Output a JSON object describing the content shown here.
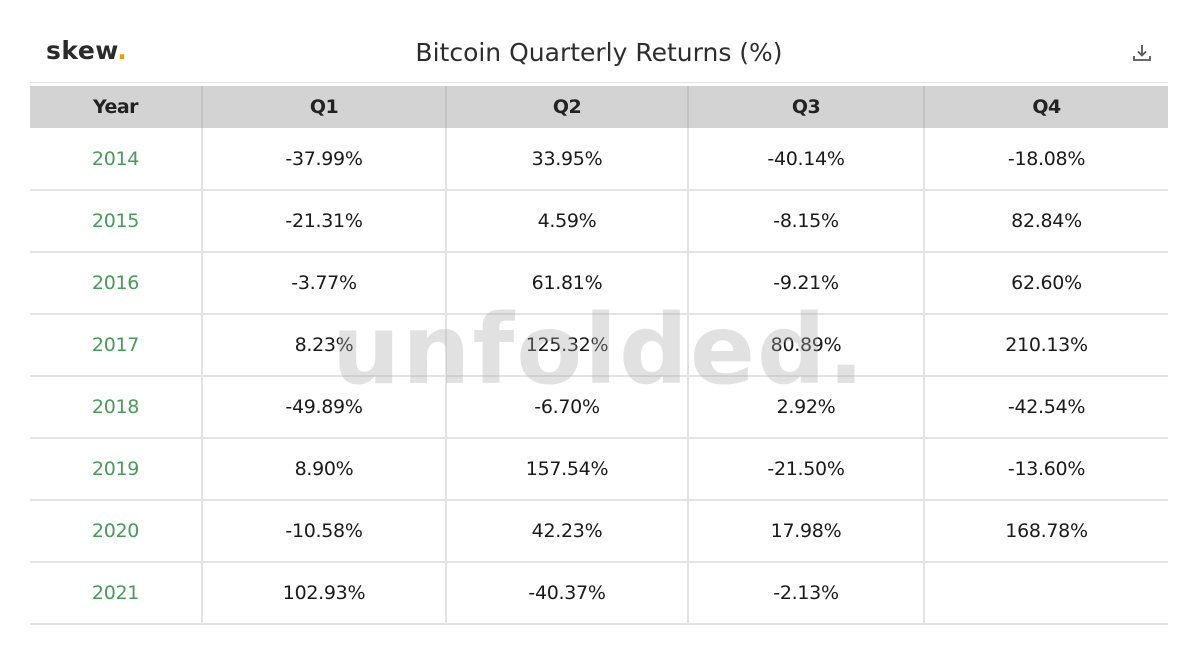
{
  "header": {
    "logo_text": "skew",
    "logo_dot": ".",
    "title": "Bitcoin Quarterly Returns (%)",
    "download_icon": "download-icon"
  },
  "watermark": "unfolded.",
  "colors": {
    "year_text": "#4a9a5c",
    "header_bg": "#d3d3d3",
    "logo_dot": "#e6a100"
  },
  "chart_data": {
    "type": "table",
    "title": "Bitcoin Quarterly Returns (%)",
    "columns": [
      "Year",
      "Q1",
      "Q2",
      "Q3",
      "Q4"
    ],
    "rows": [
      [
        "2014",
        "-37.99%",
        "33.95%",
        "-40.14%",
        "-18.08%"
      ],
      [
        "2015",
        "-21.31%",
        "4.59%",
        "-8.15%",
        "82.84%"
      ],
      [
        "2016",
        "-3.77%",
        "61.81%",
        "-9.21%",
        "62.60%"
      ],
      [
        "2017",
        "8.23%",
        "125.32%",
        "80.89%",
        "210.13%"
      ],
      [
        "2018",
        "-49.89%",
        "-6.70%",
        "2.92%",
        "-42.54%"
      ],
      [
        "2019",
        "8.90%",
        "157.54%",
        "-21.50%",
        "-13.60%"
      ],
      [
        "2020",
        "-10.58%",
        "42.23%",
        "17.98%",
        "168.78%"
      ],
      [
        "2021",
        "102.93%",
        "-40.37%",
        "-2.13%",
        ""
      ]
    ]
  }
}
